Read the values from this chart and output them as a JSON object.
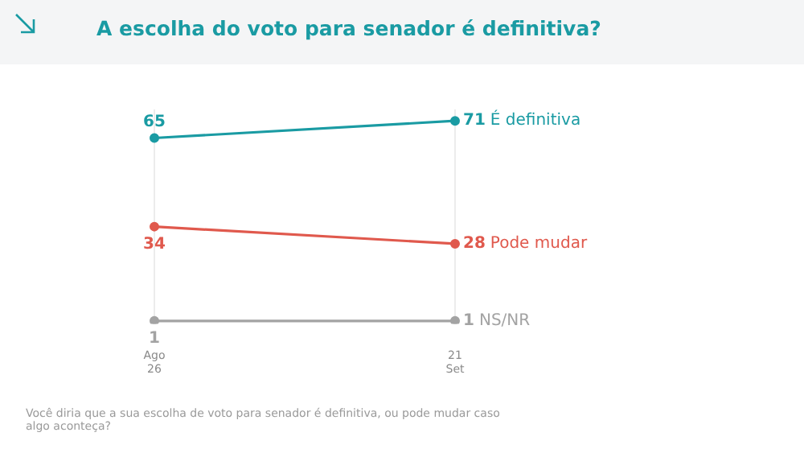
{
  "chart_data": {
    "type": "line",
    "title": "A escolha do voto para senador é definitiva?",
    "categories": [
      "Ago 26",
      "21 Set"
    ],
    "series": [
      {
        "name": "É definitiva",
        "color": "#1a9ba3",
        "values": [
          65,
          71
        ]
      },
      {
        "name": "Pode mudar",
        "color": "#e0594d",
        "values": [
          34,
          28
        ]
      },
      {
        "name": "NS/NR",
        "color": "#a3a3a3",
        "values": [
          1,
          1
        ]
      }
    ],
    "ylim": [
      0,
      75
    ],
    "tick_labels": "x",
    "grid": "x",
    "marker": "circle",
    "line_style": "solid",
    "data_labels": true,
    "legend": false,
    "annotations": [
      "Você diria que a sua escolha de voto para senador é definitiva, ou pode mudar caso algo aconteça?"
    ]
  }
}
